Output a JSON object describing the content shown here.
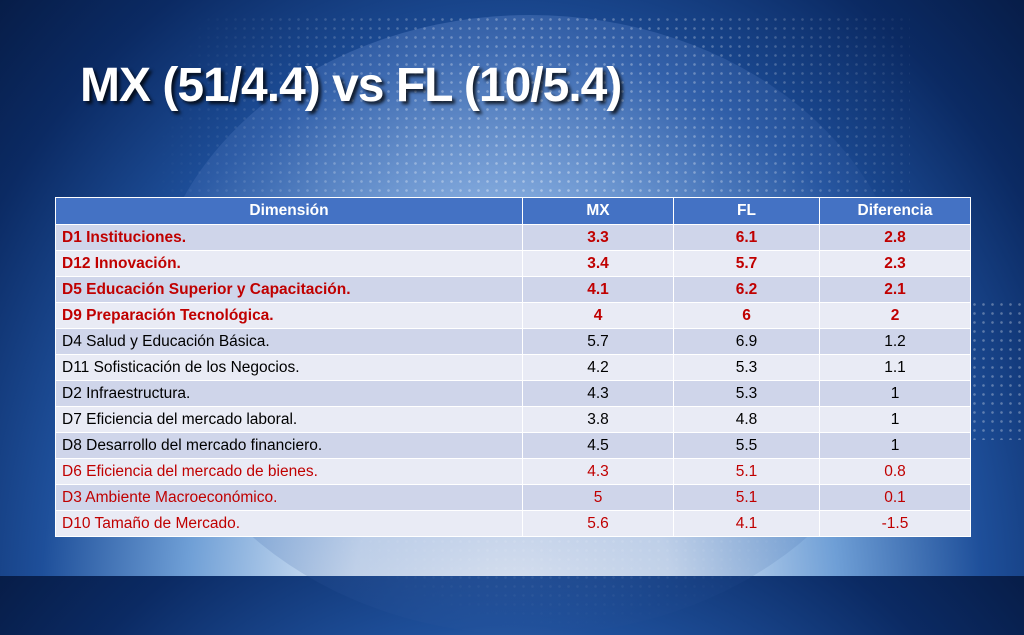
{
  "title": "MX (51/4.4) vs FL (10/5.4)",
  "table": {
    "headers": [
      "Dimensión",
      "MX",
      "FL",
      "Diferencia"
    ],
    "rows": [
      {
        "dim": "D1 Instituciones.",
        "mx": "3.3",
        "fl": "6.1",
        "dif": "2.8",
        "style": "red bold"
      },
      {
        "dim": "D12 Innovación.",
        "mx": "3.4",
        "fl": "5.7",
        "dif": "2.3",
        "style": "red bold"
      },
      {
        "dim": "D5 Educación Superior y Capacitación.",
        "mx": "4.1",
        "fl": "6.2",
        "dif": "2.1",
        "style": "red bold"
      },
      {
        "dim": "D9 Preparación Tecnológica.",
        "mx": "4",
        "fl": "6",
        "dif": "2",
        "style": "red bold"
      },
      {
        "dim": "D4 Salud y Educación Básica.",
        "mx": "5.7",
        "fl": "6.9",
        "dif": "1.2",
        "style": ""
      },
      {
        "dim": "D11 Sofisticación de los Negocios.",
        "mx": "4.2",
        "fl": "5.3",
        "dif": "1.1",
        "style": ""
      },
      {
        "dim": "D2 Infraestructura.",
        "mx": "4.3",
        "fl": "5.3",
        "dif": "1",
        "style": ""
      },
      {
        "dim": "D7 Eficiencia del mercado laboral.",
        "mx": "3.8",
        "fl": "4.8",
        "dif": "1",
        "style": ""
      },
      {
        "dim": "D8 Desarrollo del mercado financiero.",
        "mx": "4.5",
        "fl": "5.5",
        "dif": "1",
        "style": ""
      },
      {
        "dim": "D6 Eficiencia del mercado de bienes.",
        "mx": "4.3",
        "fl": "5.1",
        "dif": "0.8",
        "style": "red"
      },
      {
        "dim": "D3 Ambiente Macroeconómico.",
        "mx": "5",
        "fl": "5.1",
        "dif": "0.1",
        "style": "red"
      },
      {
        "dim": "D10 Tamaño de Mercado.",
        "mx": "5.6",
        "fl": "4.1",
        "dif": "-1.5",
        "style": "red"
      }
    ]
  },
  "colors": {
    "header_bg": "#4472c4",
    "row_odd": "#cfd5ea",
    "row_even": "#e9ebf5",
    "highlight_text": "#c00000"
  }
}
